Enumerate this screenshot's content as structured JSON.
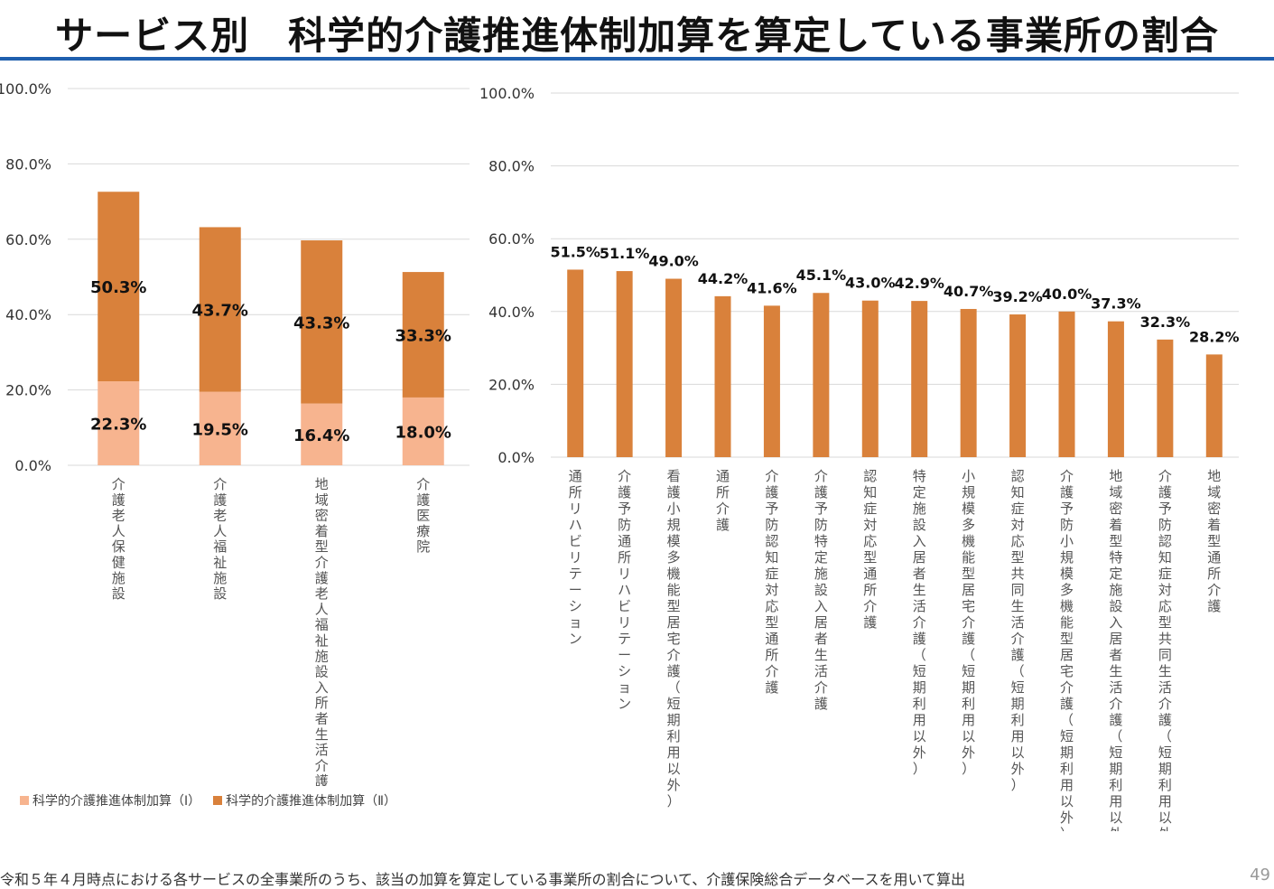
{
  "page": {
    "title": "サービス別　科学的介護推進体制加算を算定している事業所の割合",
    "footnote": "令和５年４月時点における各サービスの全事業所のうち、該当の加算を算定している事業所の割合について、介護保険総合データベースを用いて算出",
    "page_number": "49"
  },
  "legend": {
    "items": [
      {
        "label": "科学的介護推進体制加算（Ⅰ）",
        "color": "#f7b48f"
      },
      {
        "label": "科学的介護推進体制加算（Ⅱ）",
        "color": "#d9813b"
      }
    ]
  },
  "chart_data": [
    {
      "type": "bar",
      "stacked": true,
      "categories": [
        "介護老人保健施設",
        "介護老人福祉施設",
        "地域密着型介護老人福祉施設入所者生活介護",
        "介護医療院"
      ],
      "series": [
        {
          "name": "科学的介護推進体制加算（Ⅰ）",
          "values": [
            22.3,
            19.5,
            16.4,
            18.0
          ],
          "labels": [
            "22.3%",
            "19.5%",
            "16.4%",
            "18.0%"
          ],
          "color": "#f7b48f"
        },
        {
          "name": "科学的介護推進体制加算（Ⅱ）",
          "values": [
            50.3,
            43.7,
            43.3,
            33.3
          ],
          "labels": [
            "50.3%",
            "43.7%",
            "43.3%",
            "33.3%"
          ],
          "color": "#d9813b"
        }
      ],
      "ylim": [
        0,
        100
      ],
      "yticks": [
        "0.0%",
        "20.0%",
        "40.0%",
        "60.0%",
        "80.0%",
        "100.0%"
      ],
      "grid": true,
      "legend_position": "bottom-left"
    },
    {
      "type": "bar",
      "categories": [
        "通所リハビリテーション",
        "介護予防通所リハビリテーション",
        "看護小規模多機能型居宅介護（短期利用以外）",
        "通所介護",
        "介護予防認知症対応型通所介護",
        "介護予防特定施設入居者生活介護",
        "認知症対応型通所介護",
        "特定施設入居者生活介護（短期利用以外）",
        "小規模多機能型居宅介護（短期利用以外）",
        "認知症対応型共同生活介護（短期利用以外）",
        "介護予防小規模多機能型居宅介護（短期利用以外）",
        "地域密着型特定施設入居者生活介護（短期利用以外）",
        "介護予防認知症対応型共同生活介護（短期利用以外）",
        "地域密着型通所介護"
      ],
      "values": [
        51.5,
        51.1,
        49.0,
        44.2,
        41.6,
        45.1,
        43.0,
        42.9,
        40.7,
        39.2,
        40.0,
        37.3,
        32.3,
        28.2
      ],
      "labels": [
        "51.5%",
        "51.1%",
        "49.0%",
        "44.2%",
        "41.6%",
        "45.1%",
        "43.0%",
        "42.9%",
        "40.7%",
        "39.2%",
        "40.0%",
        "37.3%",
        "32.3%",
        "28.2%"
      ],
      "color": "#d9813b",
      "ylim": [
        0,
        100
      ],
      "yticks": [
        "0.0%",
        "20.0%",
        "40.0%",
        "60.0%",
        "80.0%",
        "100.0%"
      ],
      "grid": true
    }
  ]
}
